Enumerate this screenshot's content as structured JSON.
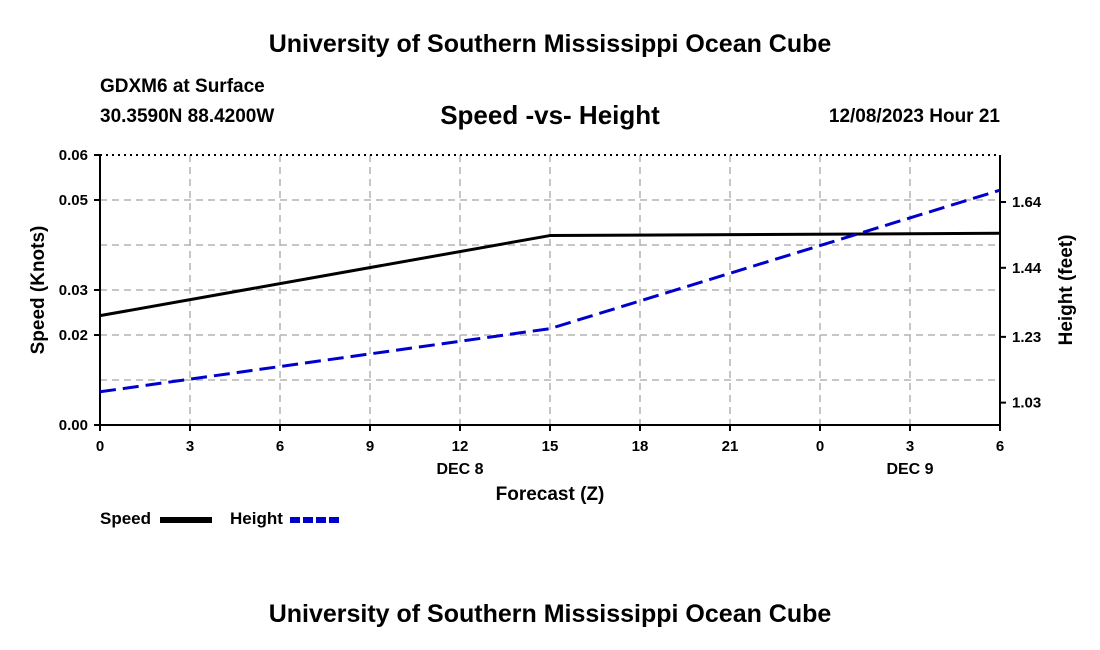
{
  "header": {
    "title": "University of Southern Mississippi Ocean Cube",
    "station": "GDXM6 at Surface",
    "coordinates": "30.3590N  88.4200W",
    "chart_title": "Speed -vs- Height",
    "datetime": "12/08/2023 Hour 21"
  },
  "footer": {
    "title": "University of Southern Mississippi Ocean Cube"
  },
  "legend": {
    "speed_label": "Speed",
    "height_label": "Height"
  },
  "colors": {
    "speed": "#000000",
    "height": "#0000cc",
    "grid": "#b4b4b4"
  },
  "chart_data": {
    "type": "line",
    "title": "Speed -vs- Height",
    "xlabel": "Forecast (Z)",
    "ylabel": "Speed (Knots)",
    "y2label": "Height (feet)",
    "x_ticks": [
      "0",
      "3",
      "6",
      "9",
      "12",
      "15",
      "18",
      "21",
      "0",
      "3",
      "6"
    ],
    "x_date_labels": [
      {
        "tick_index": 4,
        "label": "DEC 8"
      },
      {
        "tick_index": 9,
        "label": "DEC 9"
      }
    ],
    "xlim": [
      0,
      30
    ],
    "ylim": [
      0,
      0.06
    ],
    "y_ticks": [
      0,
      0.02,
      0.03,
      0.05,
      0.06
    ],
    "y_tick_labels": [
      "0.00",
      "0.02",
      "0.03",
      "0.05",
      "0.06"
    ],
    "y_grid_values": [
      0.01,
      0.02,
      0.03,
      0.04,
      0.05
    ],
    "y2lim": [
      0.962,
      1.783
    ],
    "y2_ticks": [
      1.03,
      1.23,
      1.44,
      1.64
    ],
    "y2_tick_labels": [
      "1.03",
      "1.23",
      "1.44",
      "1.64"
    ],
    "grid": true,
    "series": [
      {
        "name": "Speed",
        "axis": "left",
        "style": "solid",
        "x": [
          0,
          15,
          30
        ],
        "values": [
          0.0243,
          0.0421,
          0.0426
        ]
      },
      {
        "name": "Height",
        "axis": "right",
        "style": "dashed",
        "x": [
          0,
          15,
          30
        ],
        "values": [
          1.063,
          1.255,
          1.676
        ]
      }
    ]
  }
}
